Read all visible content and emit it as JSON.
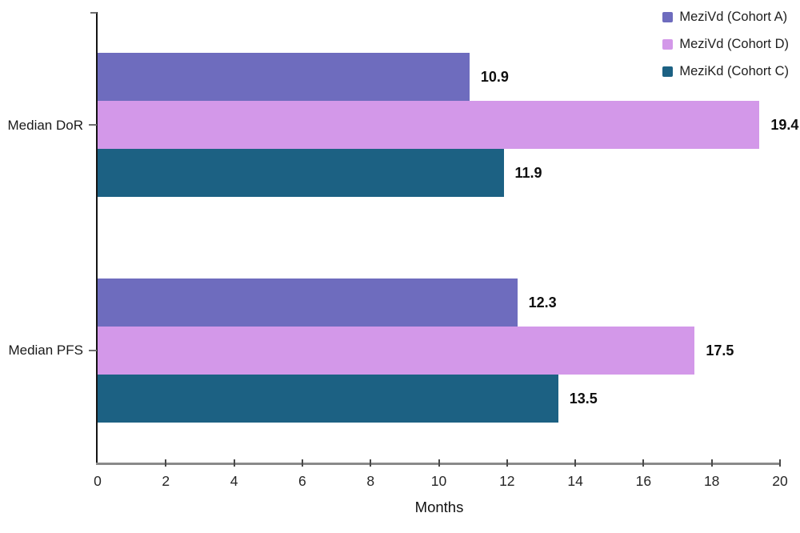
{
  "chart_data": {
    "type": "bar",
    "orientation": "horizontal",
    "categories": [
      "Median DoR",
      "Median PFS"
    ],
    "series": [
      {
        "name": "MeziVd (Cohort A)",
        "color": "#6E6CBE",
        "values": [
          10.9,
          12.3
        ]
      },
      {
        "name": "MeziVd (Cohort D)",
        "color": "#D398E9",
        "values": [
          19.4,
          17.5
        ]
      },
      {
        "name": "MeziKd (Cohort C)",
        "color": "#1C6183",
        "values": [
          11.9,
          13.5
        ]
      }
    ],
    "value_labels": {
      "Median DoR": [
        "10.9",
        "19.4",
        "11.9"
      ],
      "Median PFS": [
        "12.3",
        "17.5",
        "13.5"
      ]
    },
    "xlabel": "Months",
    "xlim": [
      0,
      20
    ],
    "xticks": [
      0,
      2,
      4,
      6,
      8,
      10,
      12,
      14,
      16,
      18,
      20
    ],
    "grid": false,
    "legend_position": "top-right",
    "colors": {
      "x_axis_line": "#8A8A8A",
      "y_axis_line": "#141414",
      "tick": "#4A4A4A",
      "value_label_text": "#0D0D0D"
    }
  }
}
